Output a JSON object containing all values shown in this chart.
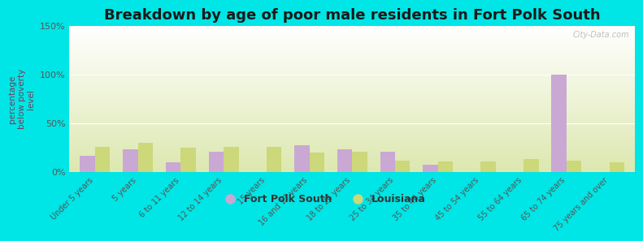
{
  "title": "Breakdown by age of poor male residents in Fort Polk South",
  "ylabel": "percentage\nbelow poverty\nlevel",
  "categories": [
    "Under 5 years",
    "5 years",
    "6 to 11 years",
    "12 to 14 years",
    "15 years",
    "16 and 17 years",
    "18 to 24 years",
    "25 to 34 years",
    "35 to 44 years",
    "45 to 54 years",
    "55 to 64 years",
    "65 to 74 years",
    "75 years and over"
  ],
  "fort_polk_south": [
    17,
    24,
    10,
    21,
    0,
    28,
    24,
    21,
    8,
    0,
    0,
    100,
    0
  ],
  "louisiana": [
    26,
    30,
    25,
    26,
    26,
    20,
    21,
    12,
    11,
    11,
    14,
    12,
    10
  ],
  "fort_polk_color": "#c9a8d4",
  "louisiana_color": "#ccd87a",
  "plot_bg_top": "#ffffff",
  "plot_bg_bottom": "#dde8b0",
  "outer_bg": "#00e5e5",
  "ylim": [
    0,
    150
  ],
  "yticks": [
    0,
    50,
    100,
    150
  ],
  "ytick_labels": [
    "0%",
    "50%",
    "100%",
    "150%"
  ],
  "bar_width": 0.35,
  "title_fontsize": 13,
  "title_color": "#1a1a1a",
  "watermark": "City-Data.com",
  "tick_color": "#555555",
  "ylabel_color": "#7a3a5a"
}
